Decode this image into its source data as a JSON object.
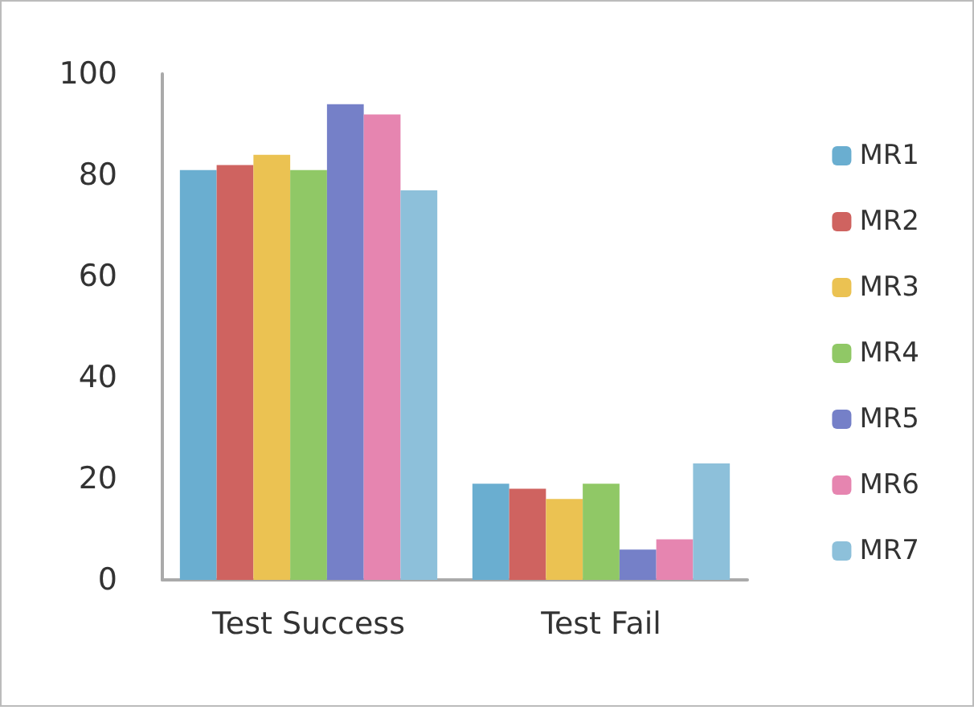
{
  "chart_data": {
    "type": "bar",
    "categories": [
      "Test Success",
      "Test Fail"
    ],
    "series": [
      {
        "name": "MR1",
        "color": "#6aaed0",
        "values": [
          81,
          19
        ]
      },
      {
        "name": "MR2",
        "color": "#cf6360",
        "values": [
          82,
          18
        ]
      },
      {
        "name": "MR3",
        "color": "#ebc252",
        "values": [
          84,
          16
        ]
      },
      {
        "name": "MR4",
        "color": "#90c866",
        "values": [
          81,
          19
        ]
      },
      {
        "name": "MR5",
        "color": "#7580c8",
        "values": [
          94,
          6
        ]
      },
      {
        "name": "MR6",
        "color": "#e685b0",
        "values": [
          92,
          8
        ]
      },
      {
        "name": "MR7",
        "color": "#8dc0da",
        "values": [
          77,
          23
        ]
      }
    ],
    "ylim": [
      0,
      100
    ],
    "yticks": [
      0,
      20,
      40,
      60,
      80,
      100
    ],
    "grid": false,
    "legend": "right"
  }
}
